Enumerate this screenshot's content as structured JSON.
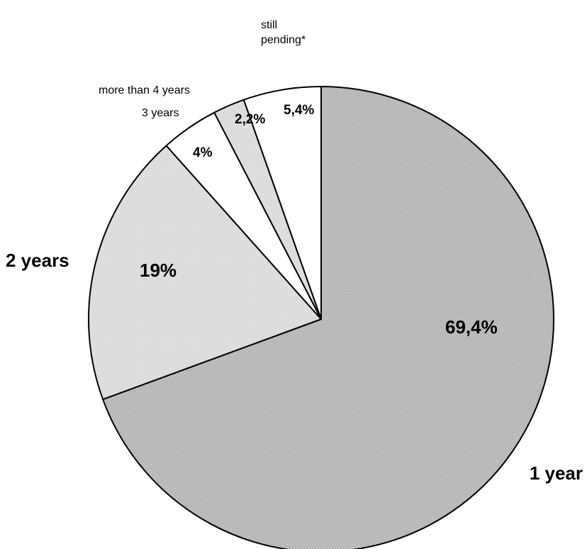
{
  "chart_data": {
    "type": "pie",
    "start_angle_deg": 0,
    "direction": "clockwise",
    "slices": [
      {
        "label": "1 year",
        "value": 69.4,
        "value_label": "69,4%",
        "fill": "dark-dots"
      },
      {
        "label": "2 years",
        "value": 19,
        "value_label": "19%",
        "fill": "light-dots"
      },
      {
        "label": "3 years",
        "value": 4,
        "value_label": "4%",
        "fill": "white"
      },
      {
        "label": "more than 4 years",
        "value": 2.2,
        "value_label": "2,2%",
        "fill": "light-dots"
      },
      {
        "label": "still pending*",
        "label_lines": [
          "still",
          "pending*"
        ],
        "value": 5.4,
        "value_label": "5,4%",
        "fill": "white"
      }
    ]
  },
  "colors": {
    "dark_fill": "#c8c8c8",
    "dark_dot": "#8a8a8a",
    "light_fill": "#e6e6e6",
    "light_dot": "#b8b8b8",
    "white_fill": "#ffffff",
    "outline": "#000000"
  }
}
